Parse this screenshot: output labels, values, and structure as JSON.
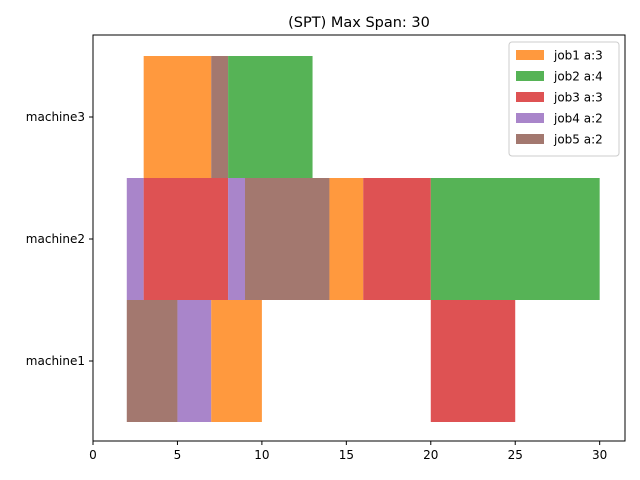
{
  "chart_data": {
    "type": "gantt",
    "title": "(SPT) Max Span: 30",
    "xlabel": "",
    "ylabel": "",
    "xlim": [
      0,
      31.5
    ],
    "xticks": [
      0,
      5,
      10,
      15,
      20,
      25,
      30
    ],
    "machines": [
      "machine1",
      "machine2",
      "machine3"
    ],
    "legend_position": "top-right",
    "grid": false,
    "jobs": [
      {
        "name": "job1 a:3",
        "color": "#ff7f0e"
      },
      {
        "name": "job2 a:4",
        "color": "#2ca02c"
      },
      {
        "name": "job3 a:3",
        "color": "#d62728"
      },
      {
        "name": "job4 a:2",
        "color": "#9467bd"
      },
      {
        "name": "job5 a:2",
        "color": "#8c564b"
      }
    ],
    "tasks": [
      {
        "job": 4,
        "machine": 0,
        "start": 2,
        "end": 5
      },
      {
        "job": 3,
        "machine": 0,
        "start": 5,
        "end": 7
      },
      {
        "job": 0,
        "machine": 0,
        "start": 7,
        "end": 10
      },
      {
        "job": 2,
        "machine": 0,
        "start": 20,
        "end": 25
      },
      {
        "job": 3,
        "machine": 1,
        "start": 2,
        "end": 3
      },
      {
        "job": 2,
        "machine": 1,
        "start": 3,
        "end": 8
      },
      {
        "job": 3,
        "machine": 1,
        "start": 8,
        "end": 9
      },
      {
        "job": 4,
        "machine": 1,
        "start": 9,
        "end": 14
      },
      {
        "job": 0,
        "machine": 1,
        "start": 14,
        "end": 16
      },
      {
        "job": 2,
        "machine": 1,
        "start": 16,
        "end": 20
      },
      {
        "job": 1,
        "machine": 1,
        "start": 20,
        "end": 30
      },
      {
        "job": 0,
        "machine": 2,
        "start": 3,
        "end": 7
      },
      {
        "job": 4,
        "machine": 2,
        "start": 7,
        "end": 8
      },
      {
        "job": 1,
        "machine": 2,
        "start": 8,
        "end": 13
      }
    ]
  }
}
